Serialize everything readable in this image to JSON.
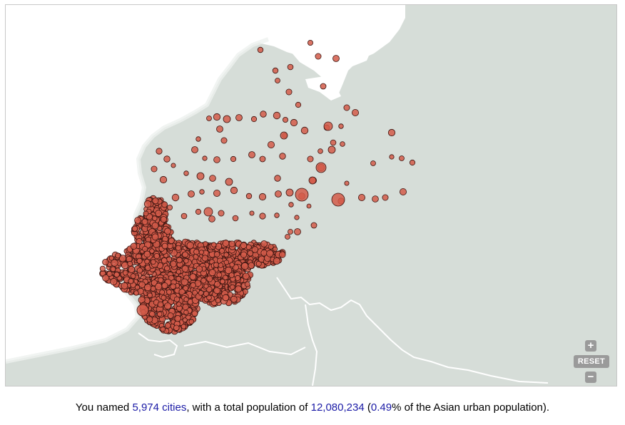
{
  "map": {
    "colors": {
      "land": "#d6ddd8",
      "water": "#ffffff",
      "border": "#ffffff",
      "marker_fill": "#d45c4a",
      "marker_stroke": "#3a1410"
    }
  },
  "controls": {
    "zoom_in_label": "+",
    "reset_label": "RESET",
    "zoom_out_label": "−"
  },
  "summary": {
    "prefix": "You named ",
    "cities": "5,974 cities",
    "middle": ", with a total population of ",
    "population": "12,080,234",
    "open_paren": " (",
    "percent": "0.49",
    "suffix": "% of the Asian urban population)."
  }
}
